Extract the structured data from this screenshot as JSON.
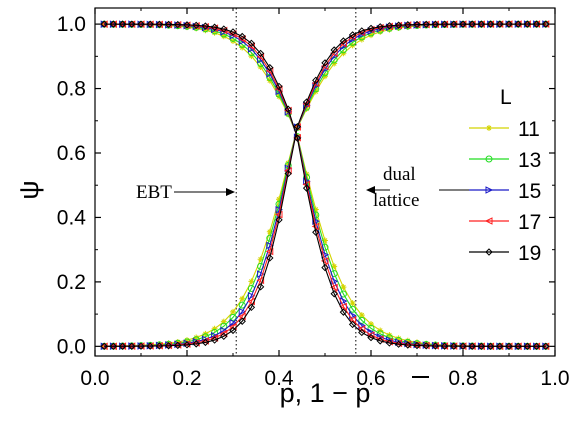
{
  "chart_data": {
    "type": "line",
    "xlabel": "p, 1 − p",
    "ylabel": "ψ",
    "xlim": [
      0.0,
      1.0
    ],
    "ylim": [
      -0.03,
      1.05
    ],
    "xticks": [
      "0.0",
      "0.2",
      "0.4",
      "0.6",
      "0.8",
      "1.0"
    ],
    "yticks": [
      "0.0",
      "0.2",
      "0.4",
      "0.6",
      "0.8",
      "1.0"
    ],
    "x_values": [
      0.02,
      0.04,
      0.06,
      0.08,
      0.1,
      0.12,
      0.14,
      0.16,
      0.18,
      0.2,
      0.22,
      0.24,
      0.26,
      0.28,
      0.3,
      0.32,
      0.34,
      0.36,
      0.38,
      0.4,
      0.42,
      0.44,
      0.46,
      0.48,
      0.5,
      0.52,
      0.54,
      0.56,
      0.58,
      0.6,
      0.62,
      0.64,
      0.66,
      0.68,
      0.7,
      0.72,
      0.74,
      0.76,
      0.78,
      0.8,
      0.82,
      0.84,
      0.86,
      0.88,
      0.9,
      0.92,
      0.94,
      0.96,
      0.98
    ],
    "reference_lines": [
      {
        "x": 0.307,
        "label": "EBT"
      },
      {
        "x": 0.567,
        "label": "dual lattice"
      }
    ],
    "legend_title": "L",
    "legend_position": "right",
    "series": [
      {
        "name": "11",
        "color": "#d4d400",
        "marker": "star",
        "rising_width": 0.056,
        "falling_width": 0.056
      },
      {
        "name": "13",
        "color": "#22dd22",
        "marker": "circle",
        "rising_width": 0.052,
        "falling_width": 0.052
      },
      {
        "name": "15",
        "color": "#1a1ac8",
        "marker": "triangle-right",
        "rising_width": 0.048,
        "falling_width": 0.048
      },
      {
        "name": "17",
        "color": "#ff2020",
        "marker": "triangle-left",
        "rising_width": 0.045,
        "falling_width": 0.045
      },
      {
        "name": "19",
        "color": "#000000",
        "marker": "diamond",
        "rising_width": 0.042,
        "falling_width": 0.042
      }
    ],
    "crossing": {
      "x": 0.437,
      "y": 0.67
    }
  }
}
